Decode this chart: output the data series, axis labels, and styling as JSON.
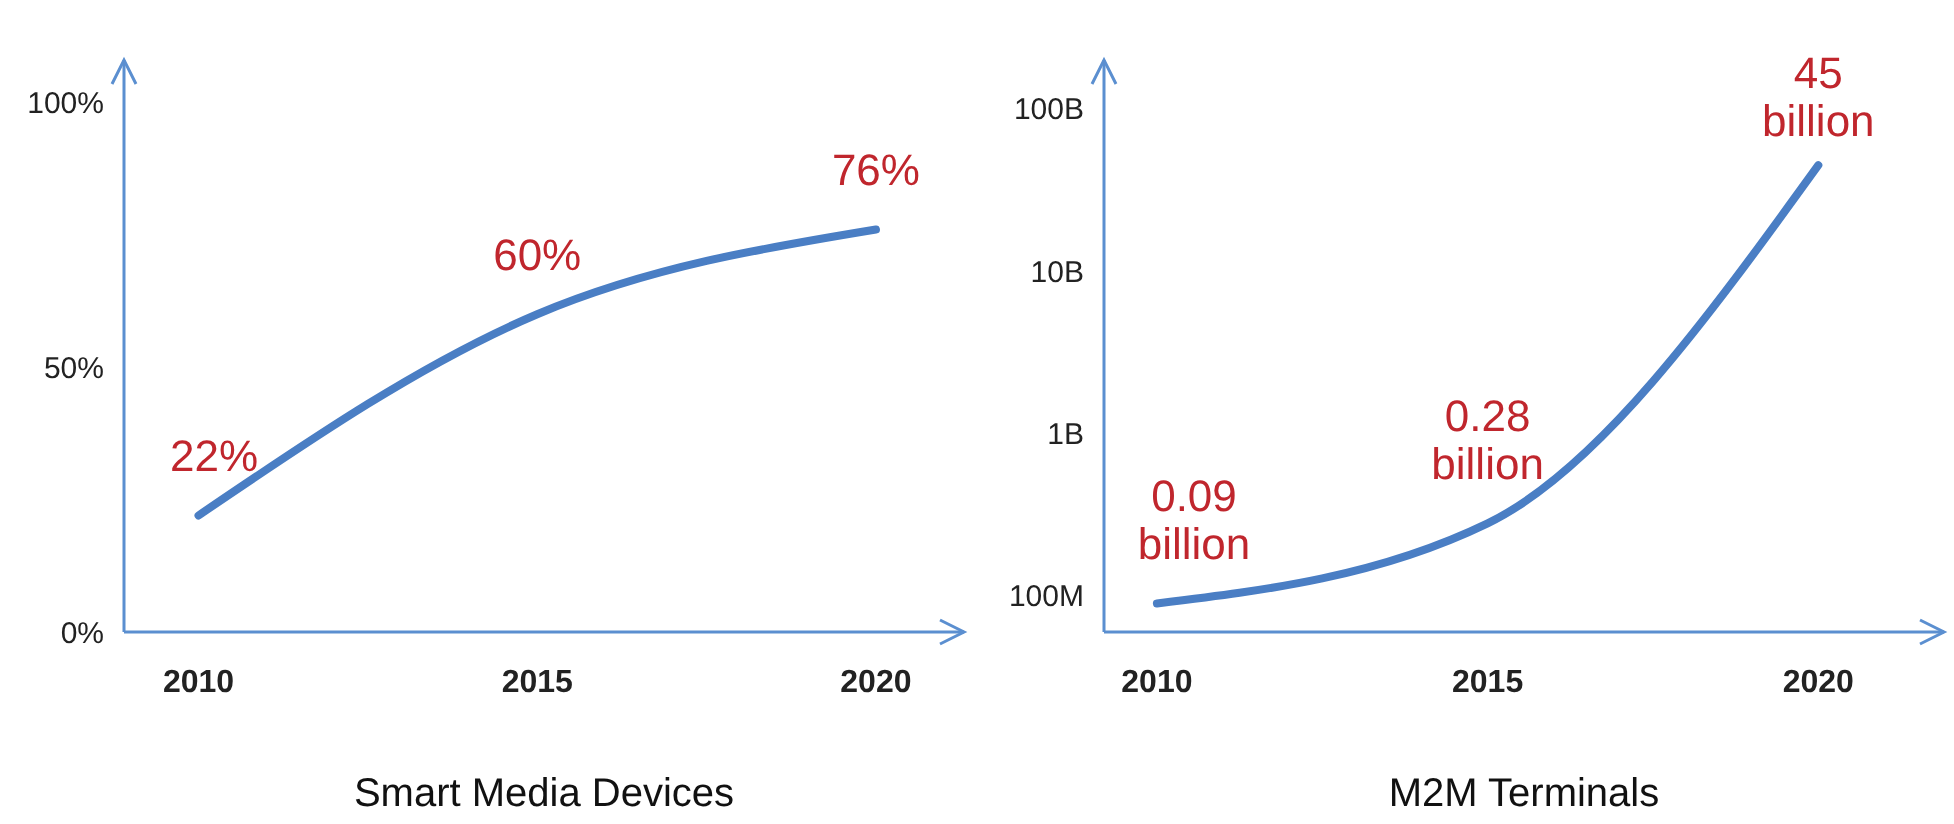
{
  "chart_data": [
    {
      "type": "line",
      "xlabel": "Smart Media Devices",
      "x": [
        2010,
        2015,
        2020
      ],
      "xlim": [
        2008.9,
        2021.3
      ],
      "xticks": [
        2010,
        2015,
        2020
      ],
      "ylim": [
        0,
        108
      ],
      "yticks": [
        {
          "value": 0,
          "label": "0%"
        },
        {
          "value": 50,
          "label": "50%"
        },
        {
          "value": 100,
          "label": "100%"
        }
      ],
      "grid": false,
      "marker": "none",
      "series": [
        {
          "color": "#4a7ec4",
          "values": [
            22,
            60,
            76
          ],
          "value_labels": [
            "22%",
            "60%",
            "76%"
          ]
        }
      ]
    },
    {
      "type": "line",
      "xlabel": "M2M Terminals",
      "log": true,
      "x": [
        2010,
        2015,
        2020
      ],
      "xlim": [
        2009.2,
        2021.9
      ],
      "xticks": [
        2010,
        2015,
        2020
      ],
      "ylim": [
        60000000,
        200000000000
      ],
      "yticks": [
        {
          "value": 100000000,
          "label": "100M"
        },
        {
          "value": 1000000000,
          "label": "1B"
        },
        {
          "value": 10000000000,
          "label": "10B"
        },
        {
          "value": 100000000000,
          "label": "100B"
        }
      ],
      "grid": false,
      "marker": "none",
      "series": [
        {
          "color": "#4a7ec4",
          "values": [
            90000000,
            280000000,
            45000000000
          ],
          "value_labels": [
            "0.09 billion",
            "0.28 billion",
            "45 billion"
          ]
        }
      ]
    }
  ]
}
